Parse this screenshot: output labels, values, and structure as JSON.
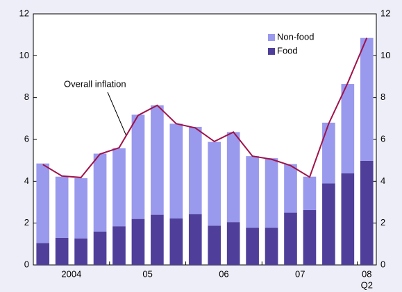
{
  "chart_data": {
    "type": "stacked-bar-line",
    "categories": [
      "2004",
      null,
      null,
      null,
      "05",
      null,
      null,
      null,
      "06",
      null,
      null,
      null,
      "07",
      null,
      null,
      null,
      null,
      "08"
    ],
    "x_sublabel": "Q2",
    "series": [
      {
        "name": "Food",
        "color": "#4f3f9b",
        "values": [
          1.05,
          1.3,
          1.27,
          1.6,
          1.85,
          2.2,
          2.4,
          2.22,
          2.43,
          1.88,
          2.05,
          1.78,
          1.78,
          2.5,
          2.62,
          3.9,
          4.38,
          4.98
        ]
      },
      {
        "name": "Non-food",
        "color": "#9999ee",
        "values": [
          3.8,
          2.92,
          2.88,
          3.72,
          3.73,
          4.98,
          5.23,
          4.53,
          4.17,
          4.0,
          4.3,
          3.42,
          3.32,
          2.32,
          1.6,
          2.9,
          4.27,
          5.87
        ]
      }
    ],
    "line": {
      "name": "Overall inflation",
      "color": "#a0134a",
      "values": [
        4.8,
        4.25,
        4.18,
        5.3,
        5.6,
        7.15,
        7.63,
        6.75,
        6.55,
        5.9,
        6.35,
        5.2,
        5.05,
        4.75,
        4.2,
        6.75,
        8.7,
        10.85
      ]
    },
    "ylim": [
      0,
      12
    ],
    "yticks": [
      0,
      2,
      4,
      6,
      8,
      10,
      12
    ],
    "y2lim": [
      0,
      12
    ],
    "y2ticks": [
      0,
      2,
      4,
      6,
      8,
      10,
      12
    ]
  }
}
